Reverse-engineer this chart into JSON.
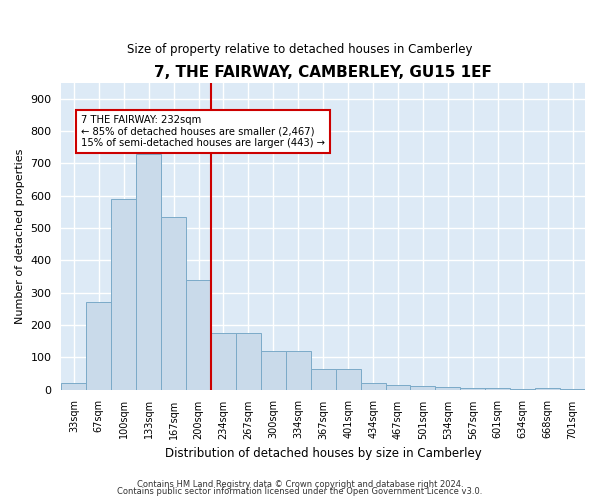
{
  "title": "7, THE FAIRWAY, CAMBERLEY, GU15 1EF",
  "subtitle": "Size of property relative to detached houses in Camberley",
  "xlabel": "Distribution of detached houses by size in Camberley",
  "ylabel": "Number of detached properties",
  "bar_color": "#c9daea",
  "bar_edge_color": "#7baac8",
  "background_color": "#ddeaf6",
  "grid_color": "#ffffff",
  "bins": [
    "33sqm",
    "67sqm",
    "100sqm",
    "133sqm",
    "167sqm",
    "200sqm",
    "234sqm",
    "267sqm",
    "300sqm",
    "334sqm",
    "367sqm",
    "401sqm",
    "434sqm",
    "467sqm",
    "501sqm",
    "534sqm",
    "567sqm",
    "601sqm",
    "634sqm",
    "668sqm",
    "701sqm"
  ],
  "values": [
    20,
    270,
    590,
    730,
    535,
    340,
    175,
    175,
    120,
    120,
    65,
    65,
    20,
    15,
    10,
    8,
    5,
    5,
    2,
    5,
    2
  ],
  "property_line_x": 5.5,
  "property_line_color": "#cc0000",
  "annotation_line1": "7 THE FAIRWAY: 232sqm",
  "annotation_line2": "← 85% of detached houses are smaller (2,467)",
  "annotation_line3": "15% of semi-detached houses are larger (443) →",
  "annotation_box_color": "#ffffff",
  "annotation_box_edge": "#cc0000",
  "ylim": [
    0,
    950
  ],
  "yticks": [
    0,
    100,
    200,
    300,
    400,
    500,
    600,
    700,
    800,
    900
  ],
  "footnote1": "Contains HM Land Registry data © Crown copyright and database right 2024.",
  "footnote2": "Contains public sector information licensed under the Open Government Licence v3.0."
}
